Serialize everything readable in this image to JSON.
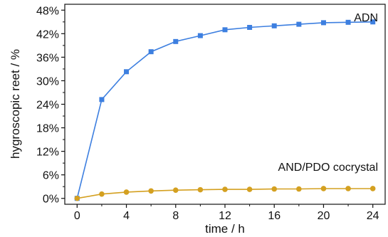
{
  "chart_data": {
    "type": "line",
    "title": "",
    "xlabel": "time / h",
    "ylabel": "hygroscopic reet / %",
    "xlim": [
      -1,
      25
    ],
    "ylim": [
      -1.5,
      49.5
    ],
    "x_ticks": [
      0,
      4,
      8,
      12,
      16,
      20,
      24
    ],
    "x_tick_labels": [
      "0",
      "4",
      "8",
      "12",
      "16",
      "20",
      "24"
    ],
    "y_ticks": [
      0,
      6,
      12,
      18,
      24,
      30,
      36,
      42,
      48
    ],
    "y_tick_labels": [
      "0%",
      "6%",
      "12%",
      "18%",
      "24%",
      "30%",
      "36%",
      "42%",
      "48%"
    ],
    "grid": false,
    "legend": "none",
    "series": [
      {
        "name": "ADN",
        "color": "#3d7fe0",
        "marker": "square",
        "x": [
          0,
          2,
          4,
          6,
          8,
          10,
          12,
          14,
          16,
          18,
          20,
          22,
          24
        ],
        "values": [
          0,
          25.2,
          32.3,
          37.4,
          40.0,
          41.5,
          43.0,
          43.6,
          44.0,
          44.4,
          44.8,
          44.9,
          45.0
        ]
      },
      {
        "name": "AND/PDO cocrystal",
        "color": "#d4a020",
        "marker": "circle",
        "x": [
          0,
          2,
          4,
          6,
          8,
          10,
          12,
          14,
          16,
          18,
          20,
          22,
          24
        ],
        "values": [
          0,
          1.1,
          1.6,
          1.9,
          2.1,
          2.2,
          2.3,
          2.3,
          2.4,
          2.4,
          2.5,
          2.5,
          2.5
        ]
      }
    ]
  }
}
